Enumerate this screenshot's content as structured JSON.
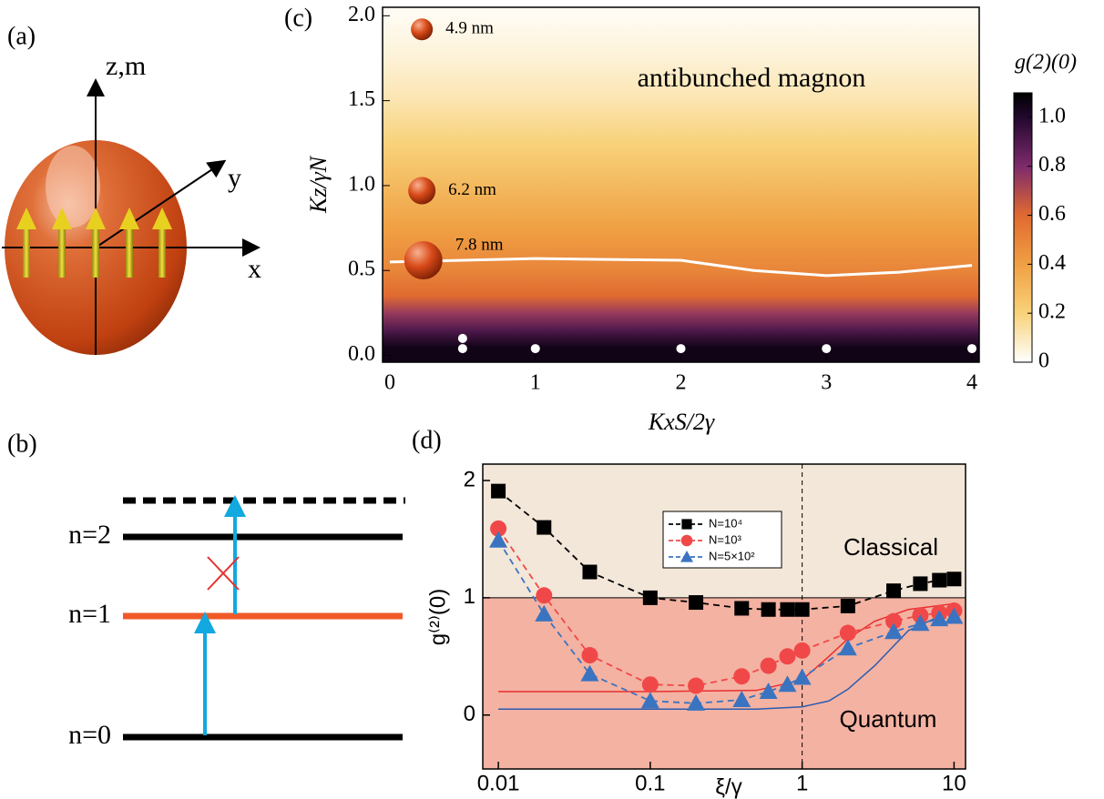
{
  "diagram_a": {
    "panel_label": "(a)",
    "z_label": "z,m",
    "y_label": "y",
    "x_label": "x"
  },
  "diagram_b": {
    "panel_label": "(b)",
    "levels": [
      "n=2",
      "n=1",
      "n=0"
    ]
  },
  "chart_data": [
    {
      "type": "heatmap",
      "panel_label": "(c)",
      "annotation": "antibunched magnon",
      "xlabel": "KxS/2γ",
      "ylabel": "Kz/γN",
      "xlim": [
        -0.05,
        4.05
      ],
      "ylim": [
        -0.04,
        2.05
      ],
      "xticks": [
        0,
        1,
        2,
        3,
        4
      ],
      "yticks": [
        {
          "value": 0,
          "label": "0.0"
        },
        {
          "value": 0.5,
          "label": "0.5"
        },
        {
          "value": 1,
          "label": "1.0"
        },
        {
          "value": 1.5,
          "label": "1.5"
        },
        {
          "value": 2,
          "label": "2.0"
        }
      ],
      "y": [
        0.05,
        0.15,
        0.25,
        0.35,
        0.5,
        0.75,
        1.0,
        1.25,
        1.5,
        1.75,
        2.0
      ],
      "values": [
        1.05,
        0.9,
        0.75,
        0.6,
        0.5,
        0.4,
        0.3,
        0.2,
        0.12,
        0.06,
        0.02
      ],
      "colorscale": [
        [
          0,
          "#ffffff"
        ],
        [
          0.2,
          "#f8d27a"
        ],
        [
          0.4,
          "#f0a043"
        ],
        [
          0.6,
          "#e06a30"
        ],
        [
          0.8,
          "#7e2a6c"
        ],
        [
          1.0,
          "#22082e"
        ],
        [
          1.1,
          "#000000"
        ]
      ],
      "colorbar": {
        "title": "g(2)(0)",
        "lim": [
          0,
          1.1
        ],
        "ticks": [
          0,
          0.2,
          0.4,
          0.6,
          0.8,
          {
            "value": 1,
            "label": "1.0"
          }
        ]
      },
      "contour": {
        "color": "#ffffff",
        "x": [
          0,
          1,
          2,
          2.5,
          3,
          3.5,
          4
        ],
        "y": [
          0.55,
          0.57,
          0.56,
          0.5,
          0.47,
          0.49,
          0.53
        ]
      },
      "points": {
        "color": "#ffffff",
        "x": [
          0.5,
          0.5,
          1,
          2,
          3,
          4
        ],
        "y": [
          0.1,
          0.04,
          0.04,
          0.04,
          0.04,
          0.04
        ]
      },
      "spheres": {
        "labels": [
          "4.9 nm",
          "6.2 nm",
          "7.8 nm"
        ],
        "x": [
          0.22,
          0.22,
          0.23
        ],
        "y": [
          1.92,
          0.97,
          0.56
        ]
      }
    },
    {
      "type": "scatter-line",
      "panel_label": "(d)",
      "xlabel": "ξ/γ",
      "ylabel": "g⁽²⁾(0)",
      "log_x": true,
      "xlim": [
        0.0079,
        11.9
      ],
      "ylim": [
        -0.46,
        2.14
      ],
      "xticks": [
        0.01,
        0.1,
        1,
        10
      ],
      "yticks": [
        0,
        1,
        2
      ],
      "x": [
        0.01,
        0.02,
        0.04,
        0.1,
        0.2,
        0.4,
        0.6,
        0.8,
        1,
        2,
        4,
        6,
        8,
        10
      ],
      "series": [
        {
          "name": "N=10⁴",
          "color": "#000000",
          "marker": "square",
          "values": [
            1.91,
            1.6,
            1.22,
            1.0,
            0.96,
            0.91,
            0.9,
            0.9,
            0.9,
            0.93,
            1.06,
            1.12,
            1.15,
            1.16
          ]
        },
        {
          "name": "N=10³",
          "color": "#f04848",
          "marker": "circle",
          "values": [
            1.59,
            1.02,
            0.51,
            0.26,
            0.25,
            0.33,
            0.42,
            0.5,
            0.55,
            0.7,
            0.8,
            0.85,
            0.87,
            0.89
          ]
        },
        {
          "name": "N=5×10²",
          "color": "#3a74c0",
          "marker": "triangle",
          "values": [
            1.49,
            0.86,
            0.35,
            0.12,
            0.1,
            0.13,
            0.2,
            0.26,
            0.32,
            0.57,
            0.71,
            0.78,
            0.82,
            0.84
          ]
        }
      ],
      "fits": [
        {
          "color": "#e83030",
          "x": [
            0.01,
            0.1,
            0.5,
            1,
            1.5,
            2,
            3,
            5,
            10
          ],
          "values": [
            0.2,
            0.2,
            0.21,
            0.3,
            0.5,
            0.65,
            0.8,
            0.9,
            0.95
          ]
        },
        {
          "color": "#2a5cb0",
          "x": [
            0.01,
            0.1,
            0.5,
            1,
            1.5,
            2,
            3,
            5,
            10
          ],
          "values": [
            0.05,
            0.05,
            0.05,
            0.07,
            0.12,
            0.22,
            0.42,
            0.72,
            0.9
          ]
        }
      ],
      "hline": 1,
      "vline": 1,
      "regions": [
        {
          "label": "Classical",
          "color": "#f3e7d9"
        },
        {
          "label": "Quantum",
          "color": "#f4b2a2"
        }
      ],
      "legend": "top-center"
    }
  ]
}
